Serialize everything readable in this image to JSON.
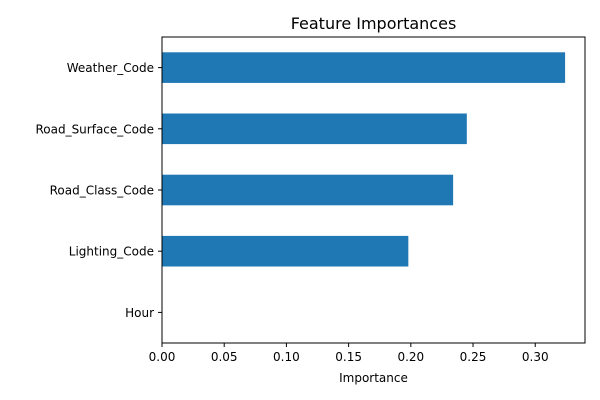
{
  "chart_data": {
    "type": "bar",
    "orientation": "horizontal",
    "title": "Feature Importances",
    "xlabel": "Importance",
    "ylabel": "",
    "categories": [
      "Weather_Code",
      "Road_Surface_Code",
      "Road_Class_Code",
      "Lighting_Code",
      "Hour"
    ],
    "values": [
      0.324,
      0.245,
      0.234,
      0.198,
      0.0
    ],
    "xlim": [
      0.0,
      0.34
    ],
    "xticks": [
      0.0,
      0.05,
      0.1,
      0.15,
      0.2,
      0.25,
      0.3
    ],
    "xtick_labels": [
      "0.00",
      "0.05",
      "0.10",
      "0.15",
      "0.20",
      "0.25",
      "0.30"
    ],
    "bar_color": "#1f77b4",
    "grid": false,
    "legend": "none"
  }
}
